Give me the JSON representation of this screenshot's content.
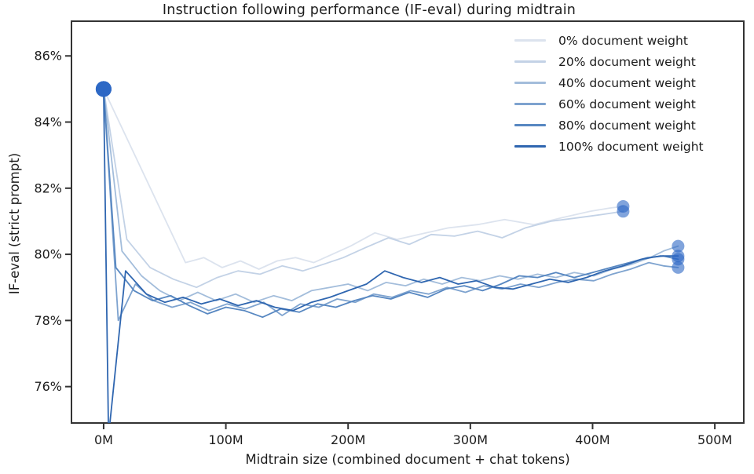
{
  "chart_data": {
    "type": "line",
    "title": "Instruction following performance (IF-eval) during midtrain",
    "xlabel": "Midtrain size (combined document + chat tokens)",
    "ylabel": "IF-eval (strict prompt)",
    "xlim": [
      -26.3,
      523.7
    ],
    "ylim": [
      74.9,
      87.05
    ],
    "grid": false,
    "legend": {
      "position": "upper right",
      "frame": false
    },
    "x_unit": "M",
    "x_ticks": [
      {
        "value": 0,
        "label": "0M"
      },
      {
        "value": 100,
        "label": "100M"
      },
      {
        "value": 200,
        "label": "200M"
      },
      {
        "value": 300,
        "label": "300M"
      },
      {
        "value": 400,
        "label": "400M"
      },
      {
        "value": 500,
        "label": "500M"
      }
    ],
    "y_ticks": [
      {
        "value": 76,
        "label": "76%"
      },
      {
        "value": 78,
        "label": "78%"
      },
      {
        "value": 80,
        "label": "80%"
      },
      {
        "value": 82,
        "label": "82%"
      },
      {
        "value": 84,
        "label": "84%"
      },
      {
        "value": 86,
        "label": "86%"
      }
    ],
    "marker": {
      "color": "#2d68c4",
      "opacity": 0.6,
      "start_radius": 10,
      "end_radius": 8
    },
    "line_width": 1.8,
    "series": [
      {
        "name": "0% document weight",
        "color": "#dce3ee",
        "points": [
          [
            0,
            85.0
          ],
          [
            67,
            79.75
          ],
          [
            82,
            79.9
          ],
          [
            97,
            79.6
          ],
          [
            112,
            79.8
          ],
          [
            127,
            79.55
          ],
          [
            142,
            79.8
          ],
          [
            157,
            79.9
          ],
          [
            172,
            79.75
          ],
          [
            187,
            80.0
          ],
          [
            202,
            80.25
          ],
          [
            222,
            80.65
          ],
          [
            240,
            80.45
          ],
          [
            258,
            80.6
          ],
          [
            282,
            80.8
          ],
          [
            306,
            80.9
          ],
          [
            328,
            81.05
          ],
          [
            352,
            80.9
          ],
          [
            374,
            81.1
          ],
          [
            398,
            81.3
          ],
          [
            414,
            81.4
          ],
          [
            425,
            81.45
          ]
        ]
      },
      {
        "name": "20% document weight",
        "color": "#c3d2e6",
        "points": [
          [
            0,
            85.0
          ],
          [
            19,
            80.45
          ],
          [
            38,
            79.6
          ],
          [
            57,
            79.25
          ],
          [
            76,
            79.0
          ],
          [
            93,
            79.3
          ],
          [
            110,
            79.5
          ],
          [
            128,
            79.4
          ],
          [
            146,
            79.65
          ],
          [
            163,
            79.5
          ],
          [
            180,
            79.7
          ],
          [
            196,
            79.9
          ],
          [
            214,
            80.2
          ],
          [
            233,
            80.5
          ],
          [
            250,
            80.3
          ],
          [
            268,
            80.6
          ],
          [
            287,
            80.55
          ],
          [
            306,
            80.7
          ],
          [
            326,
            80.5
          ],
          [
            345,
            80.8
          ],
          [
            366,
            81.0
          ],
          [
            387,
            81.1
          ],
          [
            407,
            81.2
          ],
          [
            425,
            81.3
          ]
        ]
      },
      {
        "name": "40% document weight",
        "color": "#a3bddb",
        "points": [
          [
            0,
            85.0
          ],
          [
            15,
            80.1
          ],
          [
            31,
            79.35
          ],
          [
            46,
            78.9
          ],
          [
            62,
            78.6
          ],
          [
            77,
            78.85
          ],
          [
            92,
            78.6
          ],
          [
            108,
            78.8
          ],
          [
            123,
            78.55
          ],
          [
            139,
            78.75
          ],
          [
            154,
            78.6
          ],
          [
            170,
            78.9
          ],
          [
            185,
            79.0
          ],
          [
            200,
            79.1
          ],
          [
            216,
            78.9
          ],
          [
            231,
            79.15
          ],
          [
            247,
            79.05
          ],
          [
            262,
            79.25
          ],
          [
            277,
            79.1
          ],
          [
            293,
            79.3
          ],
          [
            308,
            79.2
          ],
          [
            324,
            79.35
          ],
          [
            339,
            79.25
          ],
          [
            355,
            79.4
          ],
          [
            370,
            79.3
          ],
          [
            385,
            79.45
          ],
          [
            401,
            79.35
          ],
          [
            416,
            79.55
          ],
          [
            432,
            79.7
          ],
          [
            447,
            79.9
          ],
          [
            458,
            80.1
          ],
          [
            470,
            80.25
          ]
        ]
      },
      {
        "name": "60% document weight",
        "color": "#7ea3cf",
        "points": [
          [
            0,
            85.0
          ],
          [
            12,
            78.0
          ],
          [
            26,
            79.1
          ],
          [
            41,
            78.6
          ],
          [
            56,
            78.4
          ],
          [
            71,
            78.55
          ],
          [
            86,
            78.3
          ],
          [
            101,
            78.5
          ],
          [
            116,
            78.35
          ],
          [
            131,
            78.55
          ],
          [
            146,
            78.15
          ],
          [
            161,
            78.5
          ],
          [
            176,
            78.4
          ],
          [
            191,
            78.65
          ],
          [
            206,
            78.55
          ],
          [
            221,
            78.8
          ],
          [
            236,
            78.7
          ],
          [
            251,
            78.9
          ],
          [
            266,
            78.8
          ],
          [
            281,
            79.0
          ],
          [
            296,
            78.85
          ],
          [
            311,
            79.05
          ],
          [
            326,
            78.95
          ],
          [
            341,
            79.1
          ],
          [
            356,
            79.0
          ],
          [
            371,
            79.15
          ],
          [
            386,
            79.25
          ],
          [
            401,
            79.2
          ],
          [
            416,
            79.4
          ],
          [
            431,
            79.55
          ],
          [
            446,
            79.75
          ],
          [
            458,
            79.65
          ],
          [
            470,
            79.6
          ]
        ]
      },
      {
        "name": "80% document weight",
        "color": "#5787c1",
        "points": [
          [
            0,
            85.0
          ],
          [
            10,
            79.6
          ],
          [
            25,
            78.9
          ],
          [
            40,
            78.6
          ],
          [
            55,
            78.75
          ],
          [
            70,
            78.45
          ],
          [
            85,
            78.2
          ],
          [
            100,
            78.4
          ],
          [
            115,
            78.3
          ],
          [
            130,
            78.1
          ],
          [
            145,
            78.35
          ],
          [
            160,
            78.25
          ],
          [
            175,
            78.5
          ],
          [
            190,
            78.4
          ],
          [
            205,
            78.6
          ],
          [
            220,
            78.75
          ],
          [
            235,
            78.65
          ],
          [
            250,
            78.85
          ],
          [
            265,
            78.7
          ],
          [
            280,
            78.95
          ],
          [
            295,
            79.05
          ],
          [
            310,
            78.9
          ],
          [
            325,
            79.1
          ],
          [
            340,
            79.35
          ],
          [
            355,
            79.3
          ],
          [
            370,
            79.45
          ],
          [
            385,
            79.3
          ],
          [
            400,
            79.45
          ],
          [
            415,
            79.6
          ],
          [
            430,
            79.75
          ],
          [
            445,
            79.9
          ],
          [
            458,
            79.95
          ],
          [
            470,
            79.85
          ]
        ]
      },
      {
        "name": "100% document weight",
        "color": "#2f66b0",
        "points": [
          [
            0,
            85.0
          ],
          [
            4,
            74.5
          ],
          [
            18,
            79.5
          ],
          [
            35,
            78.8
          ],
          [
            50,
            78.55
          ],
          [
            65,
            78.7
          ],
          [
            80,
            78.5
          ],
          [
            95,
            78.65
          ],
          [
            110,
            78.45
          ],
          [
            125,
            78.6
          ],
          [
            140,
            78.4
          ],
          [
            155,
            78.3
          ],
          [
            170,
            78.55
          ],
          [
            185,
            78.7
          ],
          [
            200,
            78.9
          ],
          [
            215,
            79.1
          ],
          [
            230,
            79.5
          ],
          [
            245,
            79.3
          ],
          [
            260,
            79.15
          ],
          [
            275,
            79.3
          ],
          [
            290,
            79.1
          ],
          [
            305,
            79.2
          ],
          [
            320,
            79.0
          ],
          [
            335,
            78.95
          ],
          [
            350,
            79.1
          ],
          [
            365,
            79.25
          ],
          [
            380,
            79.15
          ],
          [
            395,
            79.3
          ],
          [
            410,
            79.5
          ],
          [
            425,
            79.65
          ],
          [
            440,
            79.85
          ],
          [
            455,
            79.95
          ],
          [
            470,
            79.95
          ]
        ]
      }
    ]
  },
  "colors": {
    "axis": "#333333",
    "text": "#1c1c1c",
    "background": "#ffffff"
  }
}
